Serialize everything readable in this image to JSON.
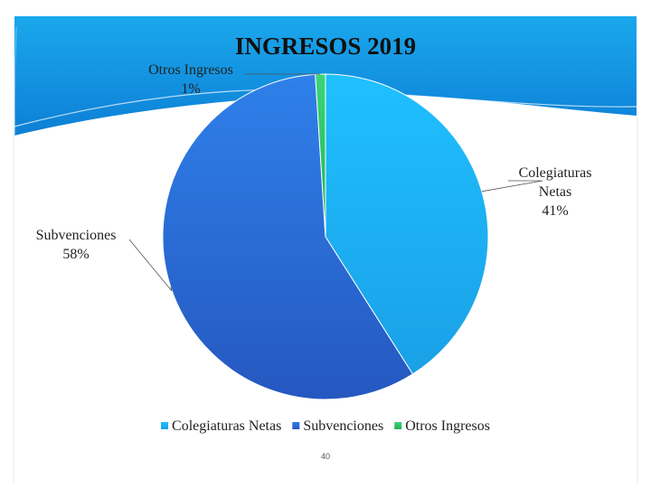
{
  "chart_data": {
    "type": "pie",
    "title": "INGRESOS 2019",
    "slices": [
      {
        "name": "Colegiaturas Netas",
        "label_lines": [
          "Colegiaturas",
          "Netas"
        ],
        "value": 41,
        "value_label": "41%",
        "color": "#1fb4f5"
      },
      {
        "name": "Subvenciones",
        "label_lines": [
          "Subvenciones"
        ],
        "value": 58,
        "value_label": "58%",
        "color": "#2a6fd6"
      },
      {
        "name": "Otros Ingresos",
        "label_lines": [
          "Otros Ingresos"
        ],
        "value": 1,
        "value_label": "1%",
        "color": "#2ec866"
      }
    ],
    "legend": {
      "placement": "bottom",
      "entries": [
        "Colegiaturas Netas",
        "Subvenciones",
        "Otros Ingresos"
      ]
    }
  },
  "page_number": "40",
  "colors": {
    "banner_top": "#1aa8ec",
    "banner_bottom": "#0d7fd6"
  }
}
